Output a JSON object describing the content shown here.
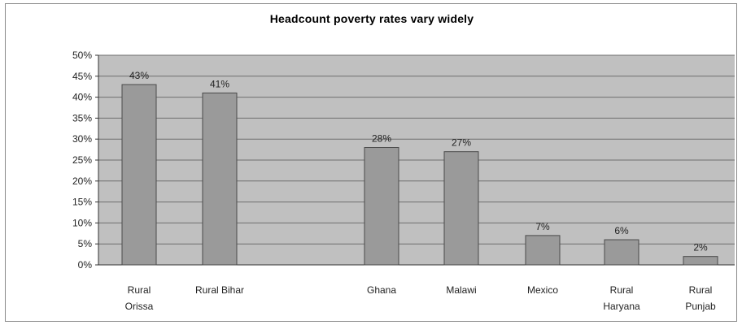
{
  "chart_data": {
    "type": "bar",
    "title": "Headcount poverty rates vary widely",
    "xlabel": "",
    "ylabel": "",
    "ylim": [
      0,
      0.5
    ],
    "yticks": [
      "0%",
      "5%",
      "10%",
      "15%",
      "20%",
      "25%",
      "30%",
      "35%",
      "40%",
      "45%",
      "50%"
    ],
    "grid": true,
    "legend": "none",
    "categories": [
      [
        "Rural",
        "Orissa"
      ],
      [
        "Rural Bihar"
      ],
      [
        "Ghana"
      ],
      [
        "Malawi"
      ],
      [
        "Mexico"
      ],
      [
        "Rural",
        "Haryana"
      ],
      [
        "Rural",
        "Punjab"
      ]
    ],
    "values": [
      0.43,
      0.41,
      0.28,
      0.27,
      0.07,
      0.06,
      0.02
    ],
    "data_labels": [
      "43%",
      "41%",
      "28%",
      "27%",
      "7%",
      "6%",
      "2%"
    ],
    "colors": {
      "plot_bg": "#c0c0c0",
      "bar": "#9a9a9a",
      "bar_edge": "#4a4a4a",
      "grid": "#6e6e6e"
    }
  }
}
